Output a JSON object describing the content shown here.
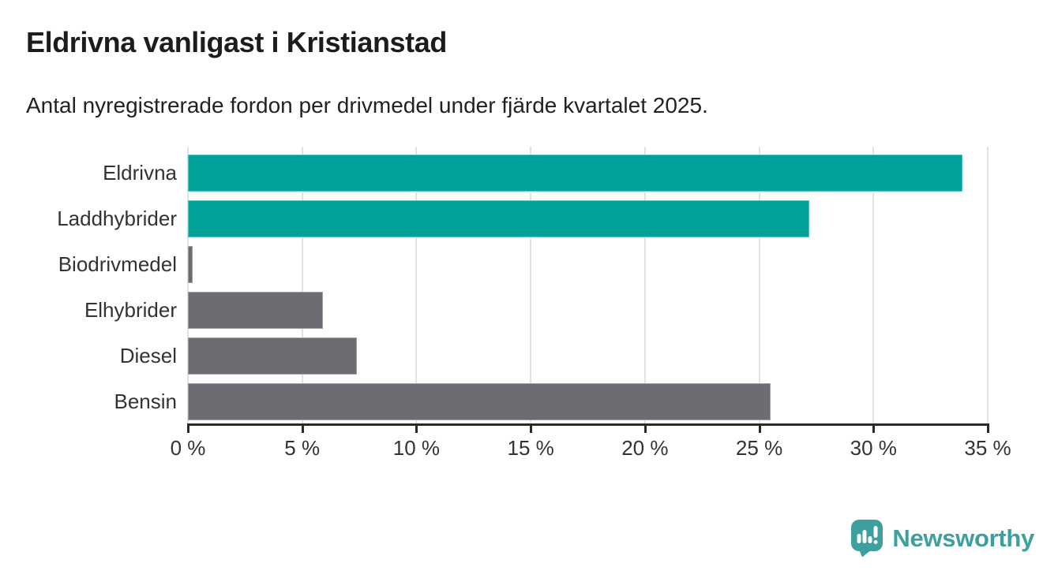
{
  "header": {
    "title": "Eldrivna vanligast i Kristianstad",
    "subtitle": "Antal nyregistrerade fordon per drivmedel under fjärde kvartalet 2025."
  },
  "chart_data": {
    "type": "bar",
    "orientation": "horizontal",
    "title": "Eldrivna vanligast i Kristianstad",
    "subtitle": "Antal nyregistrerade fordon per drivmedel under fjärde kvartalet 2025.",
    "categories": [
      "Eldrivna",
      "Laddhybrider",
      "Biodrivmedel",
      "Elhybrider",
      "Diesel",
      "Bensin"
    ],
    "values": [
      33.9,
      27.2,
      0.2,
      5.9,
      7.4,
      25.5
    ],
    "unit": "%",
    "bar_colors": [
      "#00a29b",
      "#00a29b",
      "#6c6c72",
      "#6c6c72",
      "#6c6c72",
      "#6c6c72"
    ],
    "xlabel": "",
    "ylabel": "",
    "xlim": [
      0,
      35
    ],
    "x_tick_values": [
      0,
      5,
      10,
      15,
      20,
      25,
      30,
      35
    ],
    "x_tick_labels": [
      "0 %",
      "5 %",
      "10 %",
      "15 %",
      "20 %",
      "25 %",
      "30 %",
      "35 %"
    ],
    "grid": true,
    "legend": "none"
  },
  "colors": {
    "accent_teal": "#00a29b",
    "bar_gray": "#6c6c72",
    "gridline": "#e3e3e3",
    "axis": "#2a2a2a",
    "title_text": "#1c1c1c",
    "label_text": "#333333",
    "logo_teal": "#3ea09e",
    "background": "#ffffff"
  },
  "footer": {
    "brand": "Newsworthy",
    "logo_icon": "newsworthy-badge-bar-chart-icon"
  }
}
